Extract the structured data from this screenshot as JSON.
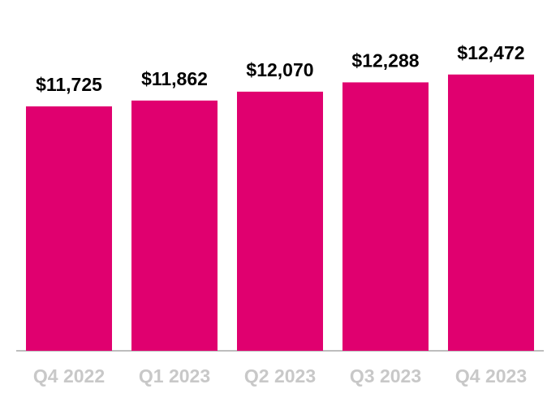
{
  "chart_data": {
    "type": "bar",
    "categories": [
      "Q4 2022",
      "Q1 2023",
      "Q2 2023",
      "Q3 2023",
      "Q4 2023"
    ],
    "values": [
      11725,
      11862,
      12070,
      12288,
      12472
    ],
    "value_labels": [
      "$11,725",
      "$11,862",
      "$12,070",
      "$12,288",
      "$12,472"
    ],
    "color": "#e0006f",
    "ylim": [
      6000,
      13000
    ]
  }
}
